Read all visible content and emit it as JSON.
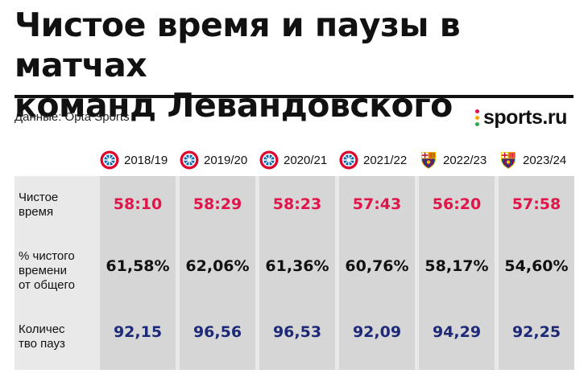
{
  "title_line1": "Чистое время и паузы в матчах",
  "title_line2": "команд Левандовского",
  "source": "Данные: Opta Sports",
  "brand": "sports.ru",
  "colors": {
    "clean_time": "#e0164a",
    "percent": "#111111",
    "pauses": "#1e2a78",
    "bayern": "#dc052d",
    "barca_blue": "#004d98",
    "barca_red": "#a50044"
  },
  "row_labels": {
    "clean_time": [
      "Чистое",
      "время"
    ],
    "percent": [
      "% чистого",
      "времени",
      "от общего"
    ],
    "pauses": [
      "Количес",
      "тво пауз"
    ]
  },
  "seasons": [
    {
      "year": "2018/19",
      "club_icon": "bayern-logo-icon",
      "clean_time": "58:10",
      "percent": "61,58%",
      "pauses": "92,15"
    },
    {
      "year": "2019/20",
      "club_icon": "bayern-logo-icon",
      "clean_time": "58:29",
      "percent": "62,06%",
      "pauses": "96,56"
    },
    {
      "year": "2020/21",
      "club_icon": "bayern-logo-icon",
      "clean_time": "58:23",
      "percent": "61,36%",
      "pauses": "96,53"
    },
    {
      "year": "2021/22",
      "club_icon": "bayern-logo-icon",
      "clean_time": "57:43",
      "percent": "60,76%",
      "pauses": "92,09"
    },
    {
      "year": "2022/23",
      "club_icon": "barcelona-logo-icon",
      "clean_time": "56:20",
      "percent": "58,17%",
      "pauses": "94,29"
    },
    {
      "year": "2023/24",
      "club_icon": "barcelona-logo-icon",
      "clean_time": "57:58",
      "percent": "54,60%",
      "pauses": "92,25"
    }
  ]
}
